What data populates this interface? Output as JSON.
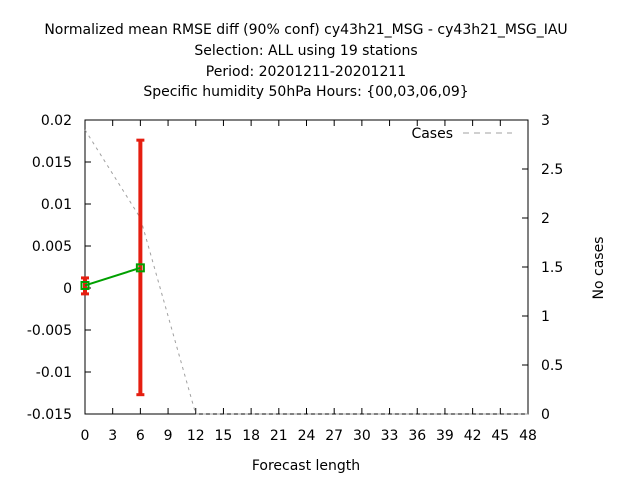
{
  "chart_data": {
    "type": "line",
    "title_lines": [
      "Normalized mean RMSE diff (90% conf) cy43h21_MSG - cy43h21_MSG_IAU",
      "Selection: ALL using    19 stations",
      "Period: 20201211-20201211",
      "Specific humidity 50hPa   Hours: {00,03,06,09}"
    ],
    "xlabel": "Forecast length",
    "ylabel": "",
    "y2label": "No cases",
    "xlim": [
      0,
      48
    ],
    "ylim": [
      -0.015,
      0.02
    ],
    "y2lim": [
      0,
      3
    ],
    "x_ticks": [
      "0",
      "3",
      "6",
      "9",
      "12",
      "15",
      "18",
      "21",
      "24",
      "27",
      "30",
      "33",
      "36",
      "39",
      "42",
      "45",
      "48"
    ],
    "y_ticks": [
      "0.02",
      "0.015",
      "0.01",
      "0.005",
      "0",
      "-0.005",
      "-0.01",
      "-0.015"
    ],
    "y2_ticks": [
      "3",
      "2.5",
      "2",
      "1.5",
      "1",
      "0.5",
      "0"
    ],
    "grid": false,
    "legend_position": "top-right",
    "colors": {
      "diff_line": "#00a000",
      "error_bars": "#e51e10",
      "cases_line": "#a0a0a0"
    },
    "series": [
      {
        "name": "Cases",
        "axis": "y2",
        "style": "dashed",
        "x": [
          0,
          6,
          12,
          15,
          18,
          21,
          24,
          27,
          30,
          33,
          36,
          39,
          42,
          45,
          48
        ],
        "values": [
          2.9,
          2.0,
          0,
          0,
          0,
          0,
          0,
          0,
          0,
          0,
          0,
          0,
          0,
          0,
          0
        ]
      },
      {
        "axis": "y",
        "style": "solid",
        "x": [
          0,
          6
        ],
        "values": [
          0.0003,
          0.0024
        ]
      }
    ],
    "error_bars": [
      {
        "x": 0,
        "low": -0.0007,
        "high": 0.0012
      },
      {
        "x": 6,
        "low": -0.0127,
        "high": 0.0176
      }
    ]
  }
}
